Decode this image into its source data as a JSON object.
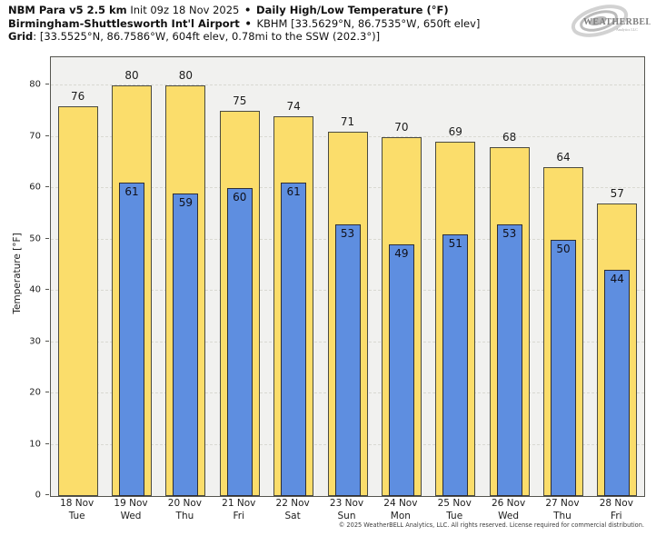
{
  "header": {
    "line1": {
      "model": "NBM Para v5 2.5 km",
      "init": "Init 09z 18 Nov 2025",
      "separator": "•",
      "product": "Daily High/Low Temperature (°F)"
    },
    "line2": {
      "station": "Birmingham-Shuttlesworth Int'l Airport",
      "separator": "•",
      "details": "KBHM [33.5629°N, 86.7535°W, 650ft elev]"
    },
    "line3": {
      "label": "Grid",
      "details": ": [33.5525°N, 86.7586°W, 604ft elev, 0.78mi to the SSW (202.3°)]"
    }
  },
  "logo": {
    "text": "WEATHERBELL",
    "subtext": "Analytics LLC"
  },
  "chart_data": {
    "type": "bar",
    "title": "Daily High/Low Temperature (°F)",
    "ylabel": "Temperature [°F]",
    "ylim": [
      0,
      85.5
    ],
    "yticks": [
      0,
      10,
      20,
      30,
      40,
      50,
      60,
      70,
      80
    ],
    "grid": true,
    "legend_position": "none",
    "plot_background": "#f1f1ef",
    "gridline_color": "#d9d9d2",
    "categories": [
      {
        "date": "18 Nov",
        "day": "Tue"
      },
      {
        "date": "19 Nov",
        "day": "Wed"
      },
      {
        "date": "20 Nov",
        "day": "Thu"
      },
      {
        "date": "21 Nov",
        "day": "Fri"
      },
      {
        "date": "22 Nov",
        "day": "Sat"
      },
      {
        "date": "23 Nov",
        "day": "Sun"
      },
      {
        "date": "24 Nov",
        "day": "Mon"
      },
      {
        "date": "25 Nov",
        "day": "Tue"
      },
      {
        "date": "26 Nov",
        "day": "Wed"
      },
      {
        "date": "27 Nov",
        "day": "Thu"
      },
      {
        "date": "28 Nov",
        "day": "Fri"
      }
    ],
    "series": [
      {
        "name": "High",
        "color": "#fbdd6b",
        "values": [
          76,
          80,
          80,
          75,
          74,
          71,
          70,
          69,
          68,
          64,
          57
        ]
      },
      {
        "name": "Low",
        "color": "#5e8ee0",
        "values": [
          null,
          61,
          59,
          60,
          61,
          53,
          49,
          51,
          53,
          50,
          44
        ]
      }
    ]
  },
  "footer": "© 2025 WeatherBELL Analytics, LLC. All rights reserved. License required for commercial distribution."
}
